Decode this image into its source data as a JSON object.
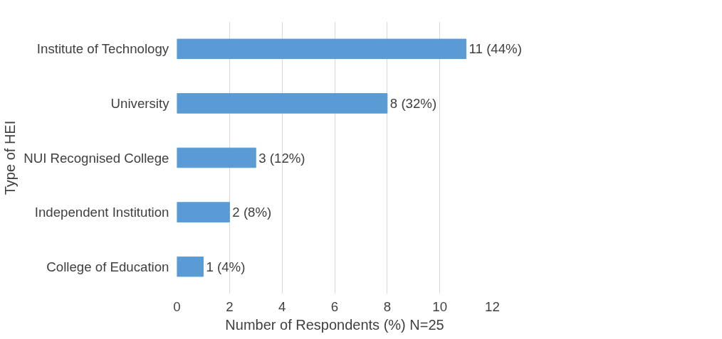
{
  "chart_data": {
    "type": "bar",
    "orientation": "horizontal",
    "xlabel": "Number of Respondents (%) N=25",
    "ylabel": "Type of HEI",
    "categories": [
      "Institute of Technology",
      "University",
      "NUI Recognised College",
      "Independent Institution",
      "College of Education"
    ],
    "values": [
      11,
      8,
      3,
      2,
      1
    ],
    "value_labels": [
      "11 (44%)",
      "8 (32%)",
      "3 (12%)",
      "2 (8%)",
      "1 (4%)"
    ],
    "color": "#5b9bd5",
    "xlim": [
      0,
      12
    ],
    "xticks": [
      0,
      2,
      4,
      6,
      8,
      10,
      12
    ],
    "grid": "x"
  }
}
